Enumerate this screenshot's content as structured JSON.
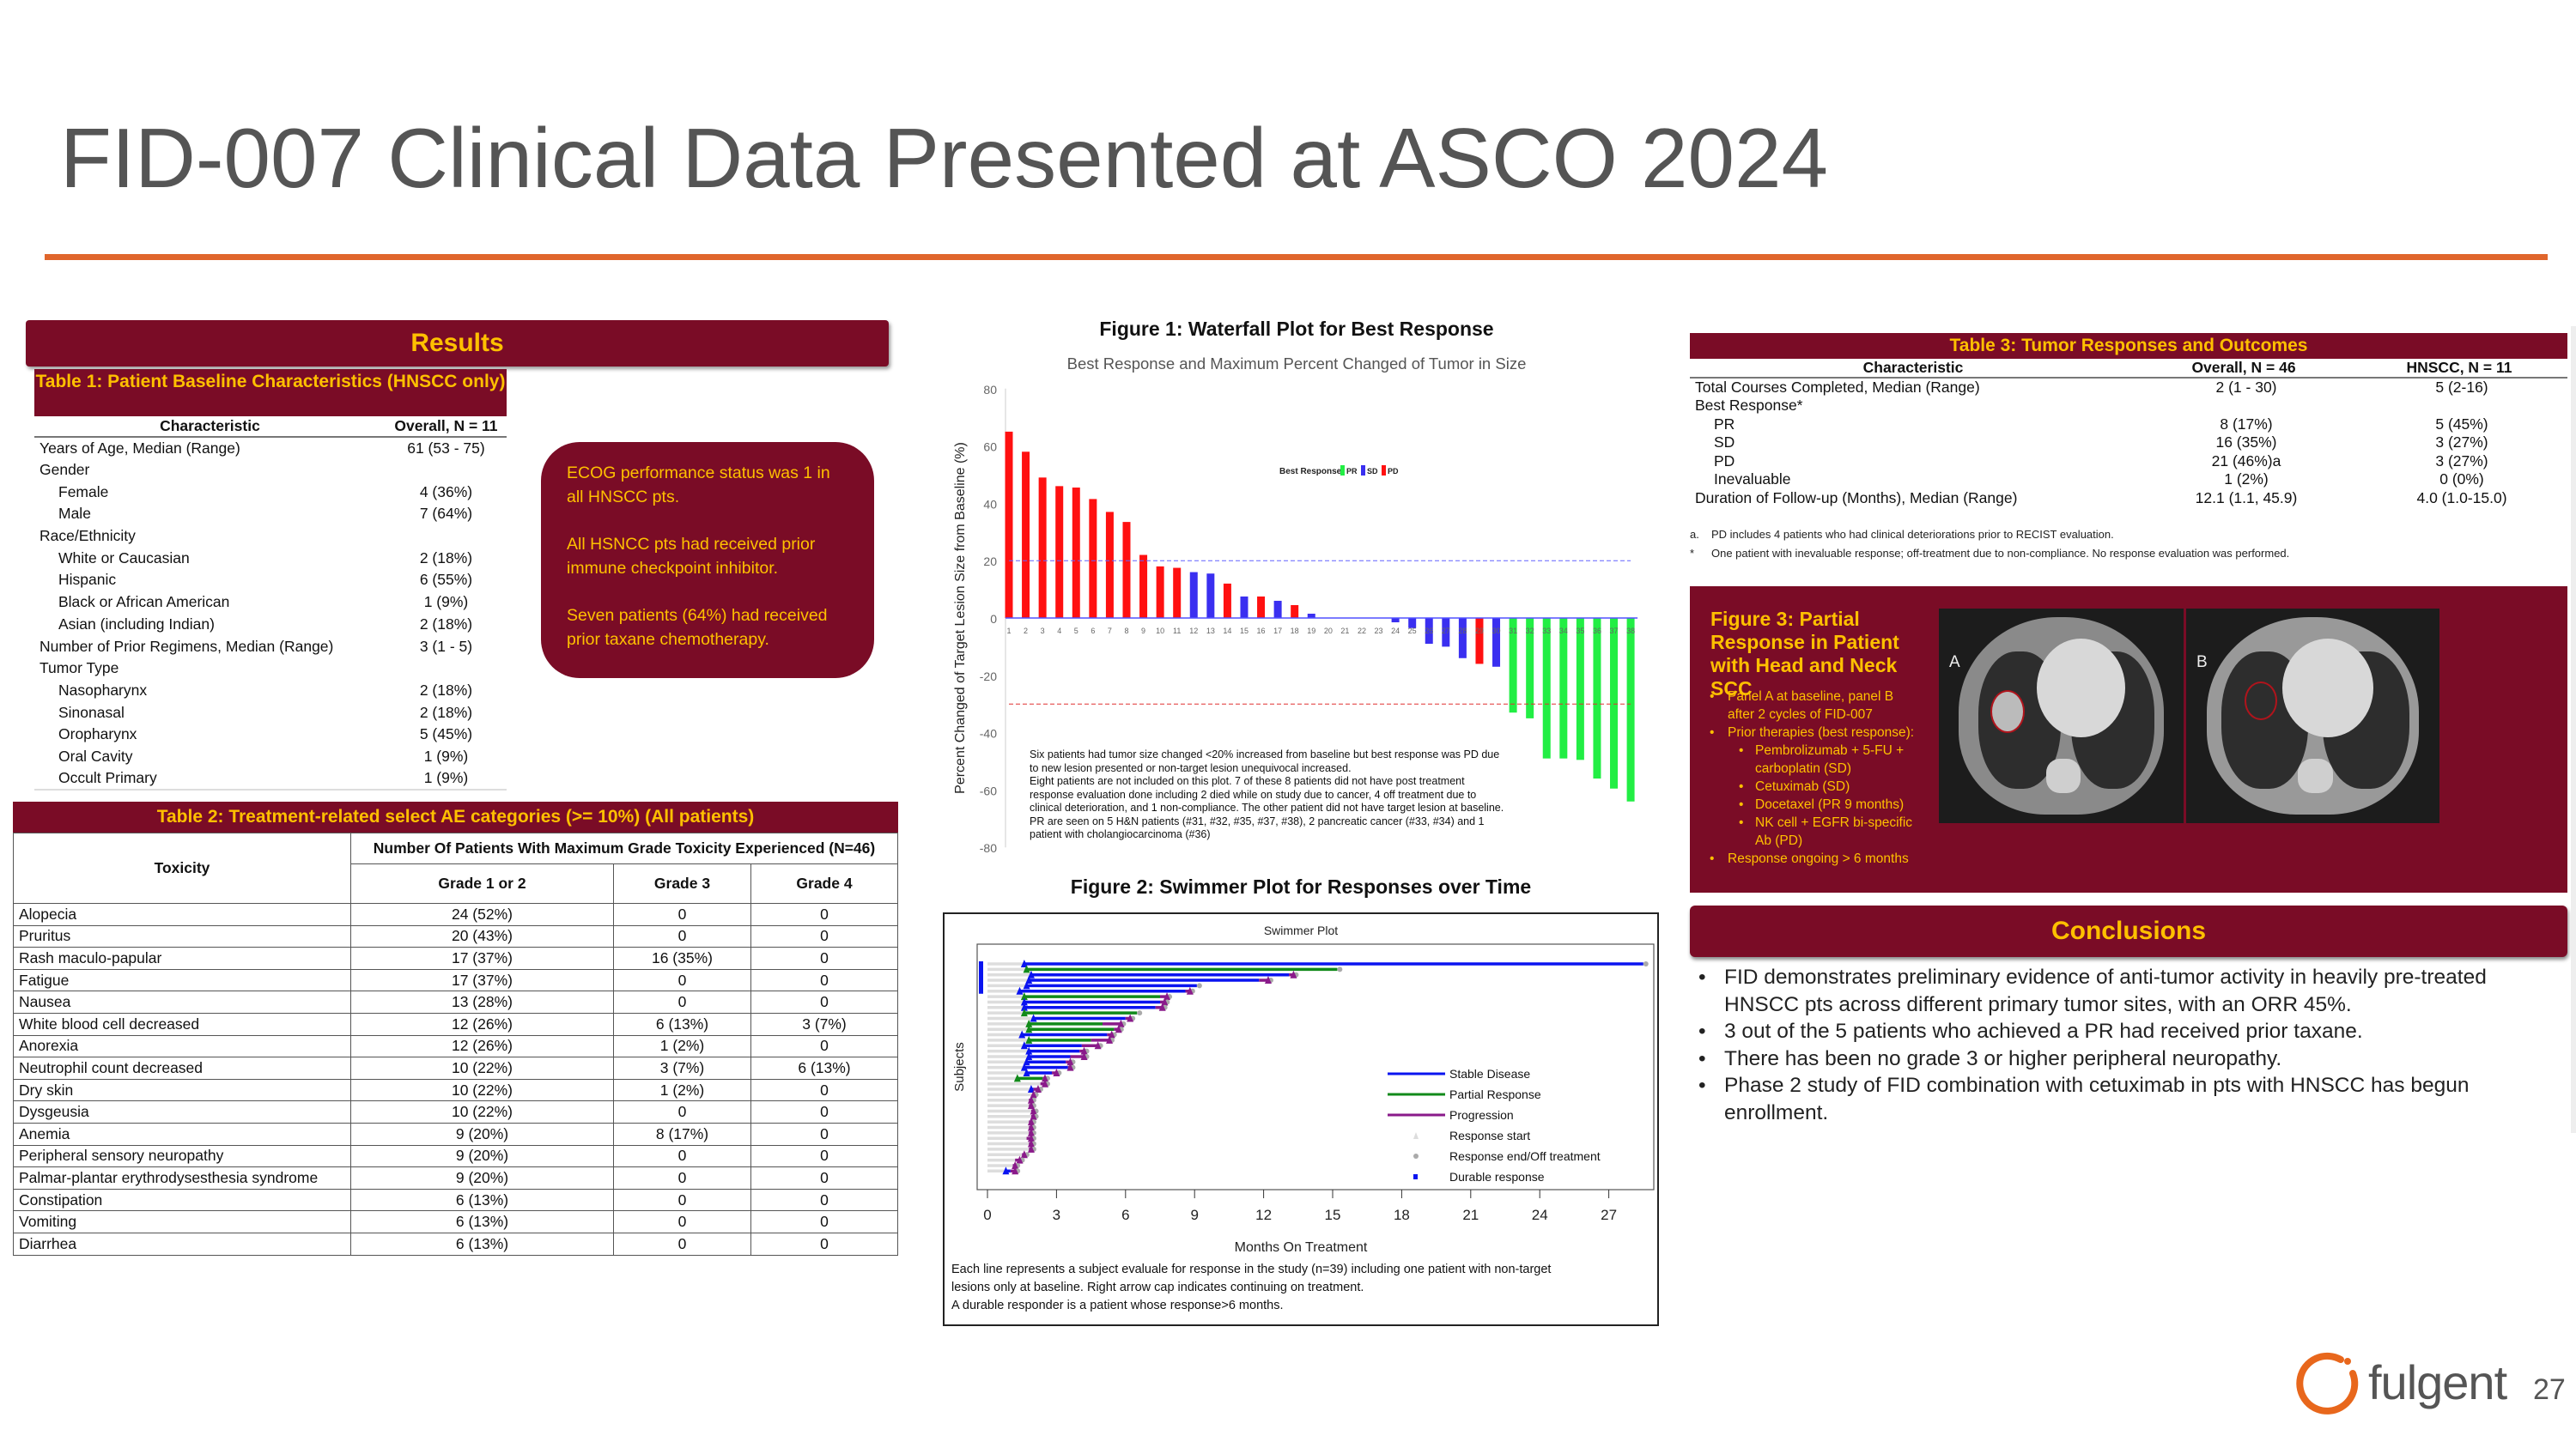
{
  "title": "FID-007 Clinical Data Presented at ASCO 2024",
  "colors": {
    "maroon": "#7a0c26",
    "gold": "#ffc000",
    "rule": "#e0662c",
    "pr": "#22ee44",
    "sd": "#3a2ff0",
    "pd": "#ff1010"
  },
  "results_header": "Results",
  "table1": {
    "title": "Table 1: Patient Baseline Characteristics (HNSCC only)",
    "headers": [
      "Characteristic",
      "Overall, N = 11"
    ],
    "rows": [
      {
        "label": "Years of Age, Median (Range)",
        "value": "61 (53 - 75)",
        "indent": false
      },
      {
        "label": "Gender",
        "value": "",
        "indent": false
      },
      {
        "label": "Female",
        "value": "4 (36%)",
        "indent": true
      },
      {
        "label": "Male",
        "value": "7 (64%)",
        "indent": true
      },
      {
        "label": "Race/Ethnicity",
        "value": "",
        "indent": false
      },
      {
        "label": "White or Caucasian",
        "value": "2 (18%)",
        "indent": true
      },
      {
        "label": "Hispanic",
        "value": "6 (55%)",
        "indent": true
      },
      {
        "label": "Black or African American",
        "value": "1 (9%)",
        "indent": true
      },
      {
        "label": "Asian (including Indian)",
        "value": "2 (18%)",
        "indent": true
      },
      {
        "label": "Number of Prior Regimens, Median (Range)",
        "value": "3 (1 - 5)",
        "indent": false
      },
      {
        "label": "Tumor Type",
        "value": "",
        "indent": false
      },
      {
        "label": "Nasopharynx",
        "value": "2 (18%)",
        "indent": true
      },
      {
        "label": "Sinonasal",
        "value": "2 (18%)",
        "indent": true
      },
      {
        "label": "Oropharynx",
        "value": "5 (45%)",
        "indent": true
      },
      {
        "label": "Oral Cavity",
        "value": "1 (9%)",
        "indent": true
      },
      {
        "label": "Occult Primary",
        "value": "1 (9%)",
        "indent": true
      }
    ]
  },
  "callout": [
    "ECOG performance status  was 1 in all HNSCC pts.",
    "All HSNCC pts had received prior immune checkpoint inhibitor.",
    "Seven patients (64%)  had received prior taxane chemotherapy."
  ],
  "table2": {
    "title": "Table 2: Treatment-related select AE categories (>= 10%) (All patients)",
    "group_header": "Number Of Patients With Maximum Grade Toxicity Experienced (N=46)",
    "headers": [
      "Toxicity",
      "Grade 1 or 2",
      "Grade 3",
      "Grade 4"
    ],
    "rows": [
      [
        "Alopecia",
        "24 (52%)",
        "0",
        "0"
      ],
      [
        "Pruritus",
        "20 (43%)",
        "0",
        "0"
      ],
      [
        "Rash maculo-papular",
        "17 (37%)",
        "16 (35%)",
        "0"
      ],
      [
        "Fatigue",
        "17 (37%)",
        "0",
        "0"
      ],
      [
        "Nausea",
        "13 (28%)",
        "0",
        "0"
      ],
      [
        "White blood cell decreased",
        "12 (26%)",
        "6 (13%)",
        "3 (7%)"
      ],
      [
        "Anorexia",
        "12 (26%)",
        "1 (2%)",
        "0"
      ],
      [
        "Neutrophil count decreased",
        "10 (22%)",
        "3 (7%)",
        "6 (13%)"
      ],
      [
        "Dry skin",
        "10 (22%)",
        "1 (2%)",
        "0"
      ],
      [
        "Dysgeusia",
        "10 (22%)",
        "0",
        "0"
      ],
      [
        "Anemia",
        "9 (20%)",
        "8 (17%)",
        "0"
      ],
      [
        "Peripheral sensory neuropathy",
        "9 (20%)",
        "0",
        "0"
      ],
      [
        "Palmar-plantar erythrodysesthesia syndrome",
        "9 (20%)",
        "0",
        "0"
      ],
      [
        "Constipation",
        "6 (13%)",
        "0",
        "0"
      ],
      [
        "Vomiting",
        "6 (13%)",
        "0",
        "0"
      ],
      [
        "Diarrhea",
        "6 (13%)",
        "0",
        "0"
      ]
    ]
  },
  "figure1_title": "Figure 1: Waterfall Plot for Best Response",
  "figure2_title": "Figure 2: Swimmer Plot for Responses over Time",
  "chart_data": [
    {
      "type": "bar",
      "title": "Best Response and Maximum Percent Changed of Tumor in Size",
      "ylabel": "Percent Changed of Target Lesion Size from Baseline (%)",
      "ylim": [
        -80,
        80
      ],
      "yticks": [
        80,
        60,
        40,
        20,
        0,
        -20,
        -40,
        -60,
        -80
      ],
      "legend_title": "Best Response:",
      "legend": [
        "PR",
        "SD",
        "PD"
      ],
      "legend_placement": "top",
      "reference_lines": [
        20,
        -30
      ],
      "categories": [
        "1",
        "2",
        "3",
        "4",
        "5",
        "6",
        "7",
        "8",
        "9",
        "10",
        "11",
        "12",
        "13",
        "14",
        "15",
        "16",
        "17",
        "18",
        "19",
        "20",
        "21",
        "22",
        "23",
        "24",
        "25",
        "26",
        "27",
        "28",
        "29",
        "30",
        "31",
        "32",
        "33",
        "34",
        "35",
        "36",
        "37",
        "38"
      ],
      "values": [
        65,
        58,
        49,
        46,
        45.5,
        41.5,
        37,
        33.5,
        22,
        18,
        17.5,
        16,
        15.5,
        12,
        7.5,
        7.5,
        6,
        4.5,
        1.5,
        0,
        0,
        0,
        0,
        -1.5,
        -3.5,
        -9,
        -10,
        -14,
        -16,
        -17,
        -33,
        -35,
        -49,
        -49,
        -49.5,
        -56,
        -59.5,
        -64
      ],
      "response": [
        "PD",
        "PD",
        "PD",
        "PD",
        "PD",
        "PD",
        "PD",
        "PD",
        "PD",
        "PD",
        "PD",
        "SD",
        "SD",
        "PD",
        "SD",
        "PD",
        "SD",
        "PD",
        "SD",
        "",
        "",
        "",
        "",
        "SD",
        "SD",
        "SD",
        "SD",
        "SD",
        "PD",
        "SD",
        "PR",
        "PR",
        "PR",
        "PR",
        "PR",
        "PR",
        "PR",
        "PR"
      ],
      "annotation": [
        "Six patients had tumor size changed <20% increased from baseline but best response was PD due to new lesion presented or non-target lesion unequivocal increased.",
        "Eight patients are not included on this plot. 7 of these 8 patients did not have post treatment response evaluation done including 2 died while on study due to cancer, 4 off treatment due to clinical deterioration, and 1 non-compliance. The other patient did not have target lesion at baseline.",
        "PR are seen on 5 H&N patients (#31, #32, #35, #37, #38), 2 pancreatic cancer (#33, #34) and 1 patient with cholangiocarcinoma (#36)"
      ]
    },
    {
      "type": "bar",
      "subtype": "swimmer",
      "title": "Swimmer Plot",
      "xlabel": "Months On Treatment",
      "ylabel": "Subjects",
      "xlim": [
        0,
        28.5
      ],
      "xticks": [
        0,
        3,
        6,
        9,
        12,
        15,
        18,
        21,
        24,
        27
      ],
      "legend": [
        "Stable Disease",
        "Partial Response",
        "Progression",
        "Response start",
        "Response end/Off treatment",
        "Durable response"
      ],
      "legend_placement": "bottom-right",
      "subjects": [
        {
          "response": "SD",
          "start": 1.6,
          "end": 28.5,
          "prog": null
        },
        {
          "response": "PR",
          "start": 1.7,
          "end": 15.2,
          "prog": null
        },
        {
          "response": "SD",
          "start": 1.9,
          "end": 13.1,
          "prog": 13.3
        },
        {
          "response": "SD",
          "start": 1.8,
          "end": 11.8,
          "prog": 12.2
        },
        {
          "response": "SD",
          "start": 1.7,
          "end": 9.1,
          "prog": null
        },
        {
          "response": "SD",
          "start": 1.4,
          "end": 8.6,
          "prog": 8.8
        },
        {
          "response": "PR",
          "start": 1.6,
          "end": 7.5,
          "prog": 7.8
        },
        {
          "response": "SD",
          "start": 1.6,
          "end": 7.5,
          "prog": 7.7
        },
        {
          "response": "SD",
          "start": 1.6,
          "end": 7.3,
          "prog": 7.6
        },
        {
          "response": "PR",
          "start": 1.6,
          "end": 6.5,
          "prog": null
        },
        {
          "response": "SD",
          "start": 2.0,
          "end": 6.0,
          "prog": 6.2
        },
        {
          "response": "PR",
          "start": 1.8,
          "end": 5.0,
          "prog": 5.8
        },
        {
          "response": "PR",
          "start": 1.8,
          "end": 5.5,
          "prog": 5.7
        },
        {
          "response": "SD",
          "start": 1.5,
          "end": 5.2,
          "prog": 5.4
        },
        {
          "response": "PR",
          "start": 1.8,
          "end": 4.5,
          "prog": 5.3
        },
        {
          "response": "SD",
          "start": 1.6,
          "end": 4.1,
          "prog": 4.8
        },
        {
          "response": "SD",
          "start": 1.8,
          "end": 4.0,
          "prog": 4.2
        },
        {
          "response": "SD",
          "start": 1.8,
          "end": 3.6,
          "prog": 4.2
        },
        {
          "response": "SD",
          "start": 1.7,
          "end": 3.4,
          "prog": 3.6
        },
        {
          "response": "SD",
          "start": 1.6,
          "end": 3.5,
          "prog": 3.6
        },
        {
          "response": "SD",
          "start": 1.7,
          "end": 2.8,
          "prog": 3.0
        },
        {
          "response": "PR",
          "start": 1.3,
          "end": 2.4,
          "prog": 2.5
        },
        {
          "response": "",
          "start": null,
          "end": 2.3,
          "prog": 2.5
        },
        {
          "response": "SD",
          "start": 1.9,
          "end": 2.0,
          "prog": 2.2
        },
        {
          "response": "",
          "start": null,
          "end": 2.0,
          "prog": 2.0
        },
        {
          "response": "",
          "start": null,
          "end": 1.8,
          "prog": 1.9
        },
        {
          "response": "",
          "start": null,
          "end": 1.8,
          "prog": 1.9
        },
        {
          "response": "",
          "start": null,
          "end": 1.9,
          "prog": 2.0
        },
        {
          "response": "",
          "start": null,
          "end": 1.9,
          "prog": 2.0
        },
        {
          "response": "",
          "start": null,
          "end": 1.8,
          "prog": 1.9
        },
        {
          "response": "",
          "start": null,
          "end": 1.8,
          "prog": 1.9
        },
        {
          "response": "",
          "start": null,
          "end": 1.8,
          "prog": 1.9
        },
        {
          "response": "",
          "start": null,
          "end": 1.7,
          "prog": 1.9
        },
        {
          "response": "",
          "start": null,
          "end": 1.8,
          "prog": 1.9
        },
        {
          "response": "",
          "start": null,
          "end": 1.8,
          "prog": 1.9
        },
        {
          "response": "",
          "start": null,
          "end": 1.5,
          "prog": 1.6
        },
        {
          "response": "",
          "start": null,
          "end": 1.2,
          "prog": 1.4
        },
        {
          "response": "",
          "start": null,
          "end": 1.1,
          "prog": 1.2
        },
        {
          "response": "SD",
          "start": 0.8,
          "end": 1.0,
          "prog": 1.2
        }
      ],
      "durable_response_subjects": [
        1,
        2,
        3,
        4,
        5,
        6
      ],
      "caption": [
        "Each line represents a subject evaluale for response in the study (n=39) including one patient with non-target",
        "lesions only at baseline. Right arrow cap indicates continuing on treatment.",
        "A durable responder is a patient whose response>6 months."
      ]
    }
  ],
  "table3": {
    "title": "Table 3: Tumor Responses and Outcomes",
    "headers": [
      "Characteristic",
      "Overall, N = 46",
      "HNSCC, N = 11"
    ],
    "rows": [
      {
        "label": "Total Courses Completed, Median (Range)",
        "overall": "2 (1 - 30)",
        "hnscc": "5 (2-16)",
        "indent": false
      },
      {
        "label": "Best Response*",
        "overall": "",
        "hnscc": "",
        "indent": false
      },
      {
        "label": "PR",
        "overall": "8 (17%)",
        "hnscc": "5 (45%)",
        "indent": true
      },
      {
        "label": "SD",
        "overall": "16 (35%)",
        "hnscc": "3 (27%)",
        "indent": true
      },
      {
        "label": "PD",
        "overall": "21 (46%)a",
        "hnscc": "3 (27%)",
        "indent": true
      },
      {
        "label": "Inevaluable",
        "overall": "1 (2%)",
        "hnscc": "0 (0%)",
        "indent": true
      },
      {
        "label": "Duration of Follow-up (Months), Median (Range)",
        "overall": "12.1 (1.1, 45.9)",
        "hnscc": "4.0 (1.0-15.0)",
        "indent": false
      }
    ],
    "footnotes": [
      {
        "mark": "a.",
        "text": "PD includes 4 patients who had clinical deteriorations prior to RECIST evaluation."
      },
      {
        "mark": "*",
        "text": "One patient with inevaluable response; off-treatment due to non-compliance. No response evaluation was performed."
      }
    ]
  },
  "figure3": {
    "title": "Figure 3: Partial Response in Patient with Head and Neck SCC",
    "bullets": [
      {
        "text": "Panel A at baseline, panel B after 2 cycles of FID-007",
        "sub": false
      },
      {
        "text": "Prior therapies (best response):",
        "sub": false
      },
      {
        "text": "Pembrolizumab + 5-FU + carboplatin (SD)",
        "sub": true
      },
      {
        "text": "Cetuximab (SD)",
        "sub": true
      },
      {
        "text": "Docetaxel (PR 9 months)",
        "sub": true
      },
      {
        "text": "NK cell + EGFR bi-specific Ab (PD)",
        "sub": true
      },
      {
        "text": "Response ongoing > 6 months",
        "sub": false
      }
    ],
    "panel_a": "A",
    "panel_b": "B"
  },
  "conclusions": {
    "title": "Conclusions",
    "bullets": [
      "FID demonstrates preliminary evidence of anti-tumor activity in heavily pre-treated HNSCC pts across different primary tumor sites, with an ORR 45%.",
      "3 out of the 5 patients who achieved a PR had received prior taxane.",
      "There has been no grade 3 or higher peripheral neuropathy.",
      "Phase 2 study of FID combination with cetuximab in pts with HNSCC has begun enrollment."
    ]
  },
  "logo": "fulgent",
  "page_number": "27"
}
